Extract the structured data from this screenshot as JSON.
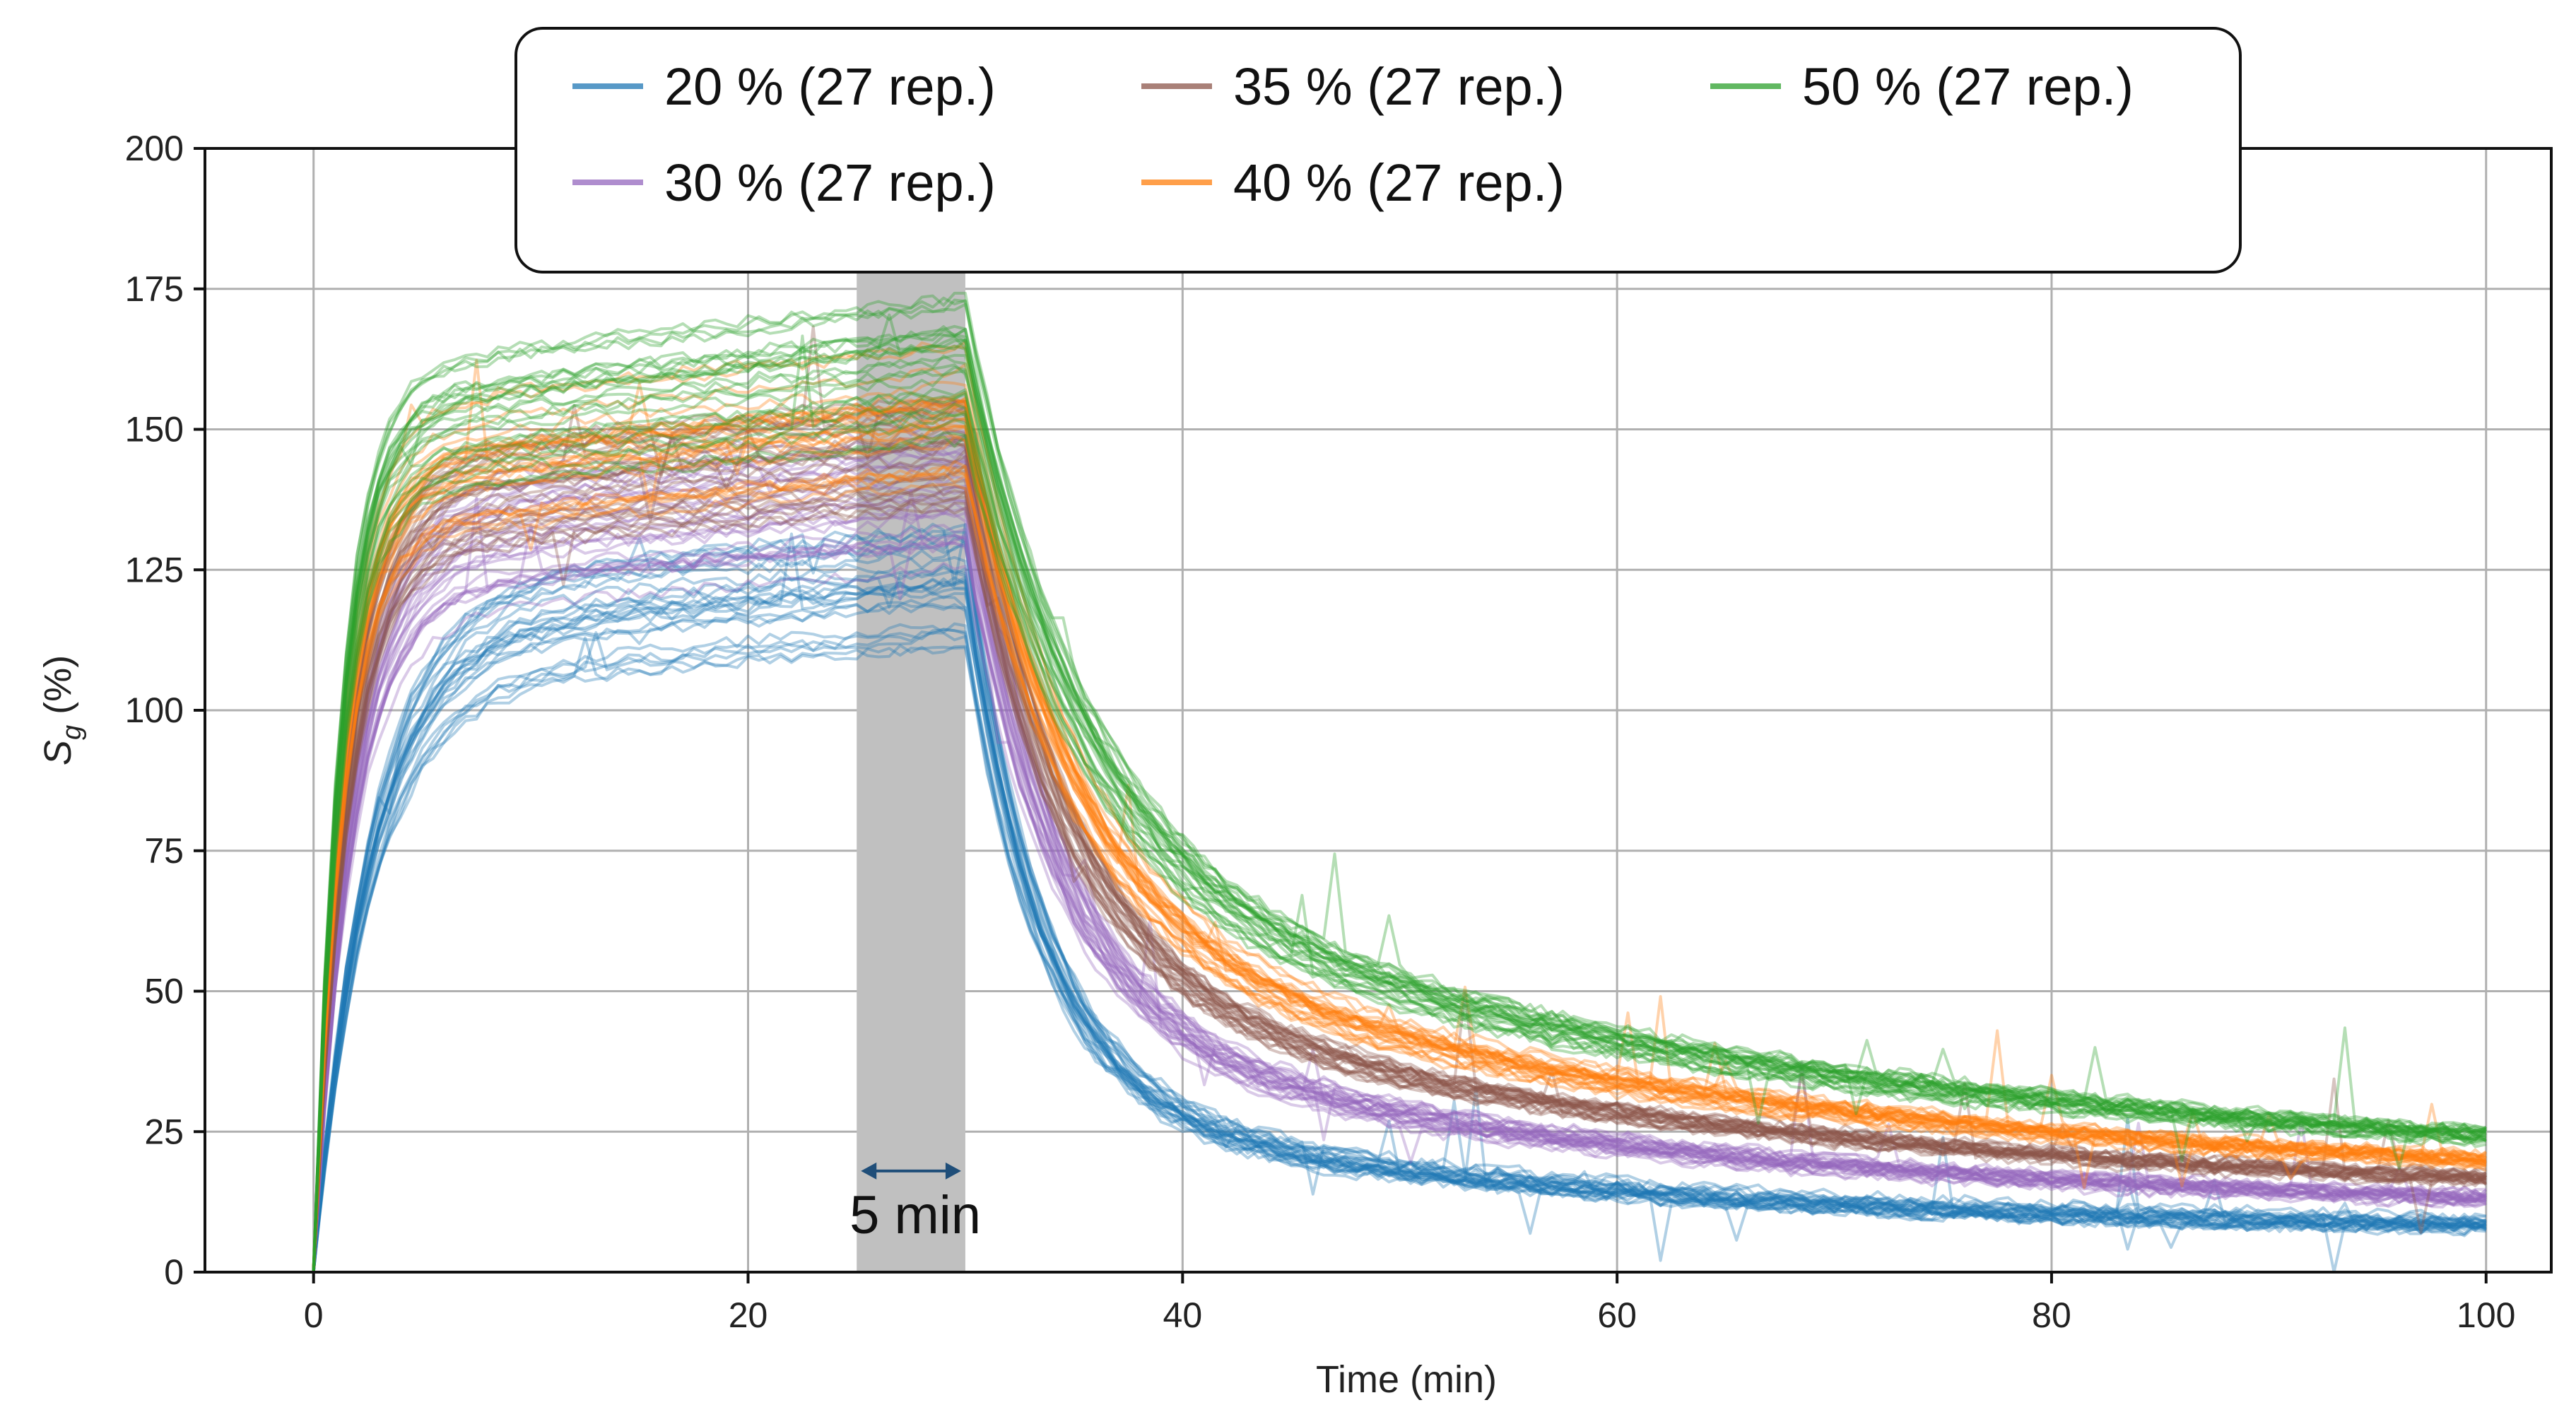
{
  "chart_data": {
    "type": "line",
    "title": "",
    "xlabel": "Time (min)",
    "ylabel_main": "S",
    "ylabel_sub": "g",
    "ylabel_unit": "(%)",
    "xlim": [
      -5,
      103
    ],
    "ylim": [
      0,
      200
    ],
    "xticks": [
      0,
      20,
      40,
      60,
      80,
      100
    ],
    "yticks": [
      0,
      25,
      50,
      75,
      100,
      125,
      150,
      175,
      200
    ],
    "grid": true,
    "legend_position": "top-center",
    "replicates_per_series": 27,
    "shaded_region": {
      "x_start": 25,
      "x_end": 30,
      "color": "#c0c0c0"
    },
    "annotation": {
      "text": "5 min",
      "arrow_from_x": 25,
      "arrow_to_x": 30,
      "arrow_y": 18,
      "arrow_color": "#1f4e79"
    },
    "series": [
      {
        "name": "20 % (27 rep.)",
        "color": "#1f77b4",
        "time_constant": 2.6,
        "plateau": 113,
        "peak": 122,
        "spread": 8,
        "tail_at_100": 12,
        "fast_decay_share": 0.8,
        "fast_decay_tau": 3.5,
        "slow_decay_tau": 28
      },
      {
        "name": "30 % (27 rep.)",
        "color": "#9467bd",
        "time_constant": 1.8,
        "plateau": 128,
        "peak": 138,
        "spread": 6,
        "tail_at_100": 17,
        "fast_decay_share": 0.74,
        "fast_decay_tau": 4.2,
        "slow_decay_tau": 32
      },
      {
        "name": "35 % (27 rep.)",
        "color": "#8c564b",
        "time_constant": 1.6,
        "plateau": 136,
        "peak": 146,
        "spread": 6,
        "tail_at_100": 21,
        "fast_decay_share": 0.7,
        "fast_decay_tau": 4.6,
        "slow_decay_tau": 34
      },
      {
        "name": "40 % (27 rep.)",
        "color": "#ff7f0e",
        "time_constant": 1.4,
        "plateau": 142,
        "peak": 153,
        "spread": 4,
        "tail_at_100": 24,
        "fast_decay_share": 0.66,
        "fast_decay_tau": 5.0,
        "slow_decay_tau": 36
      },
      {
        "name": "50 % (27 rep.)",
        "color": "#2ca02c",
        "time_constant": 1.3,
        "plateau": 148,
        "peak": 160,
        "spread": 4,
        "tail_at_100": 28,
        "fast_decay_share": 0.62,
        "fast_decay_tau": 5.4,
        "slow_decay_tau": 38
      }
    ],
    "legend_order": [
      0,
      2,
      4,
      1,
      3
    ]
  }
}
